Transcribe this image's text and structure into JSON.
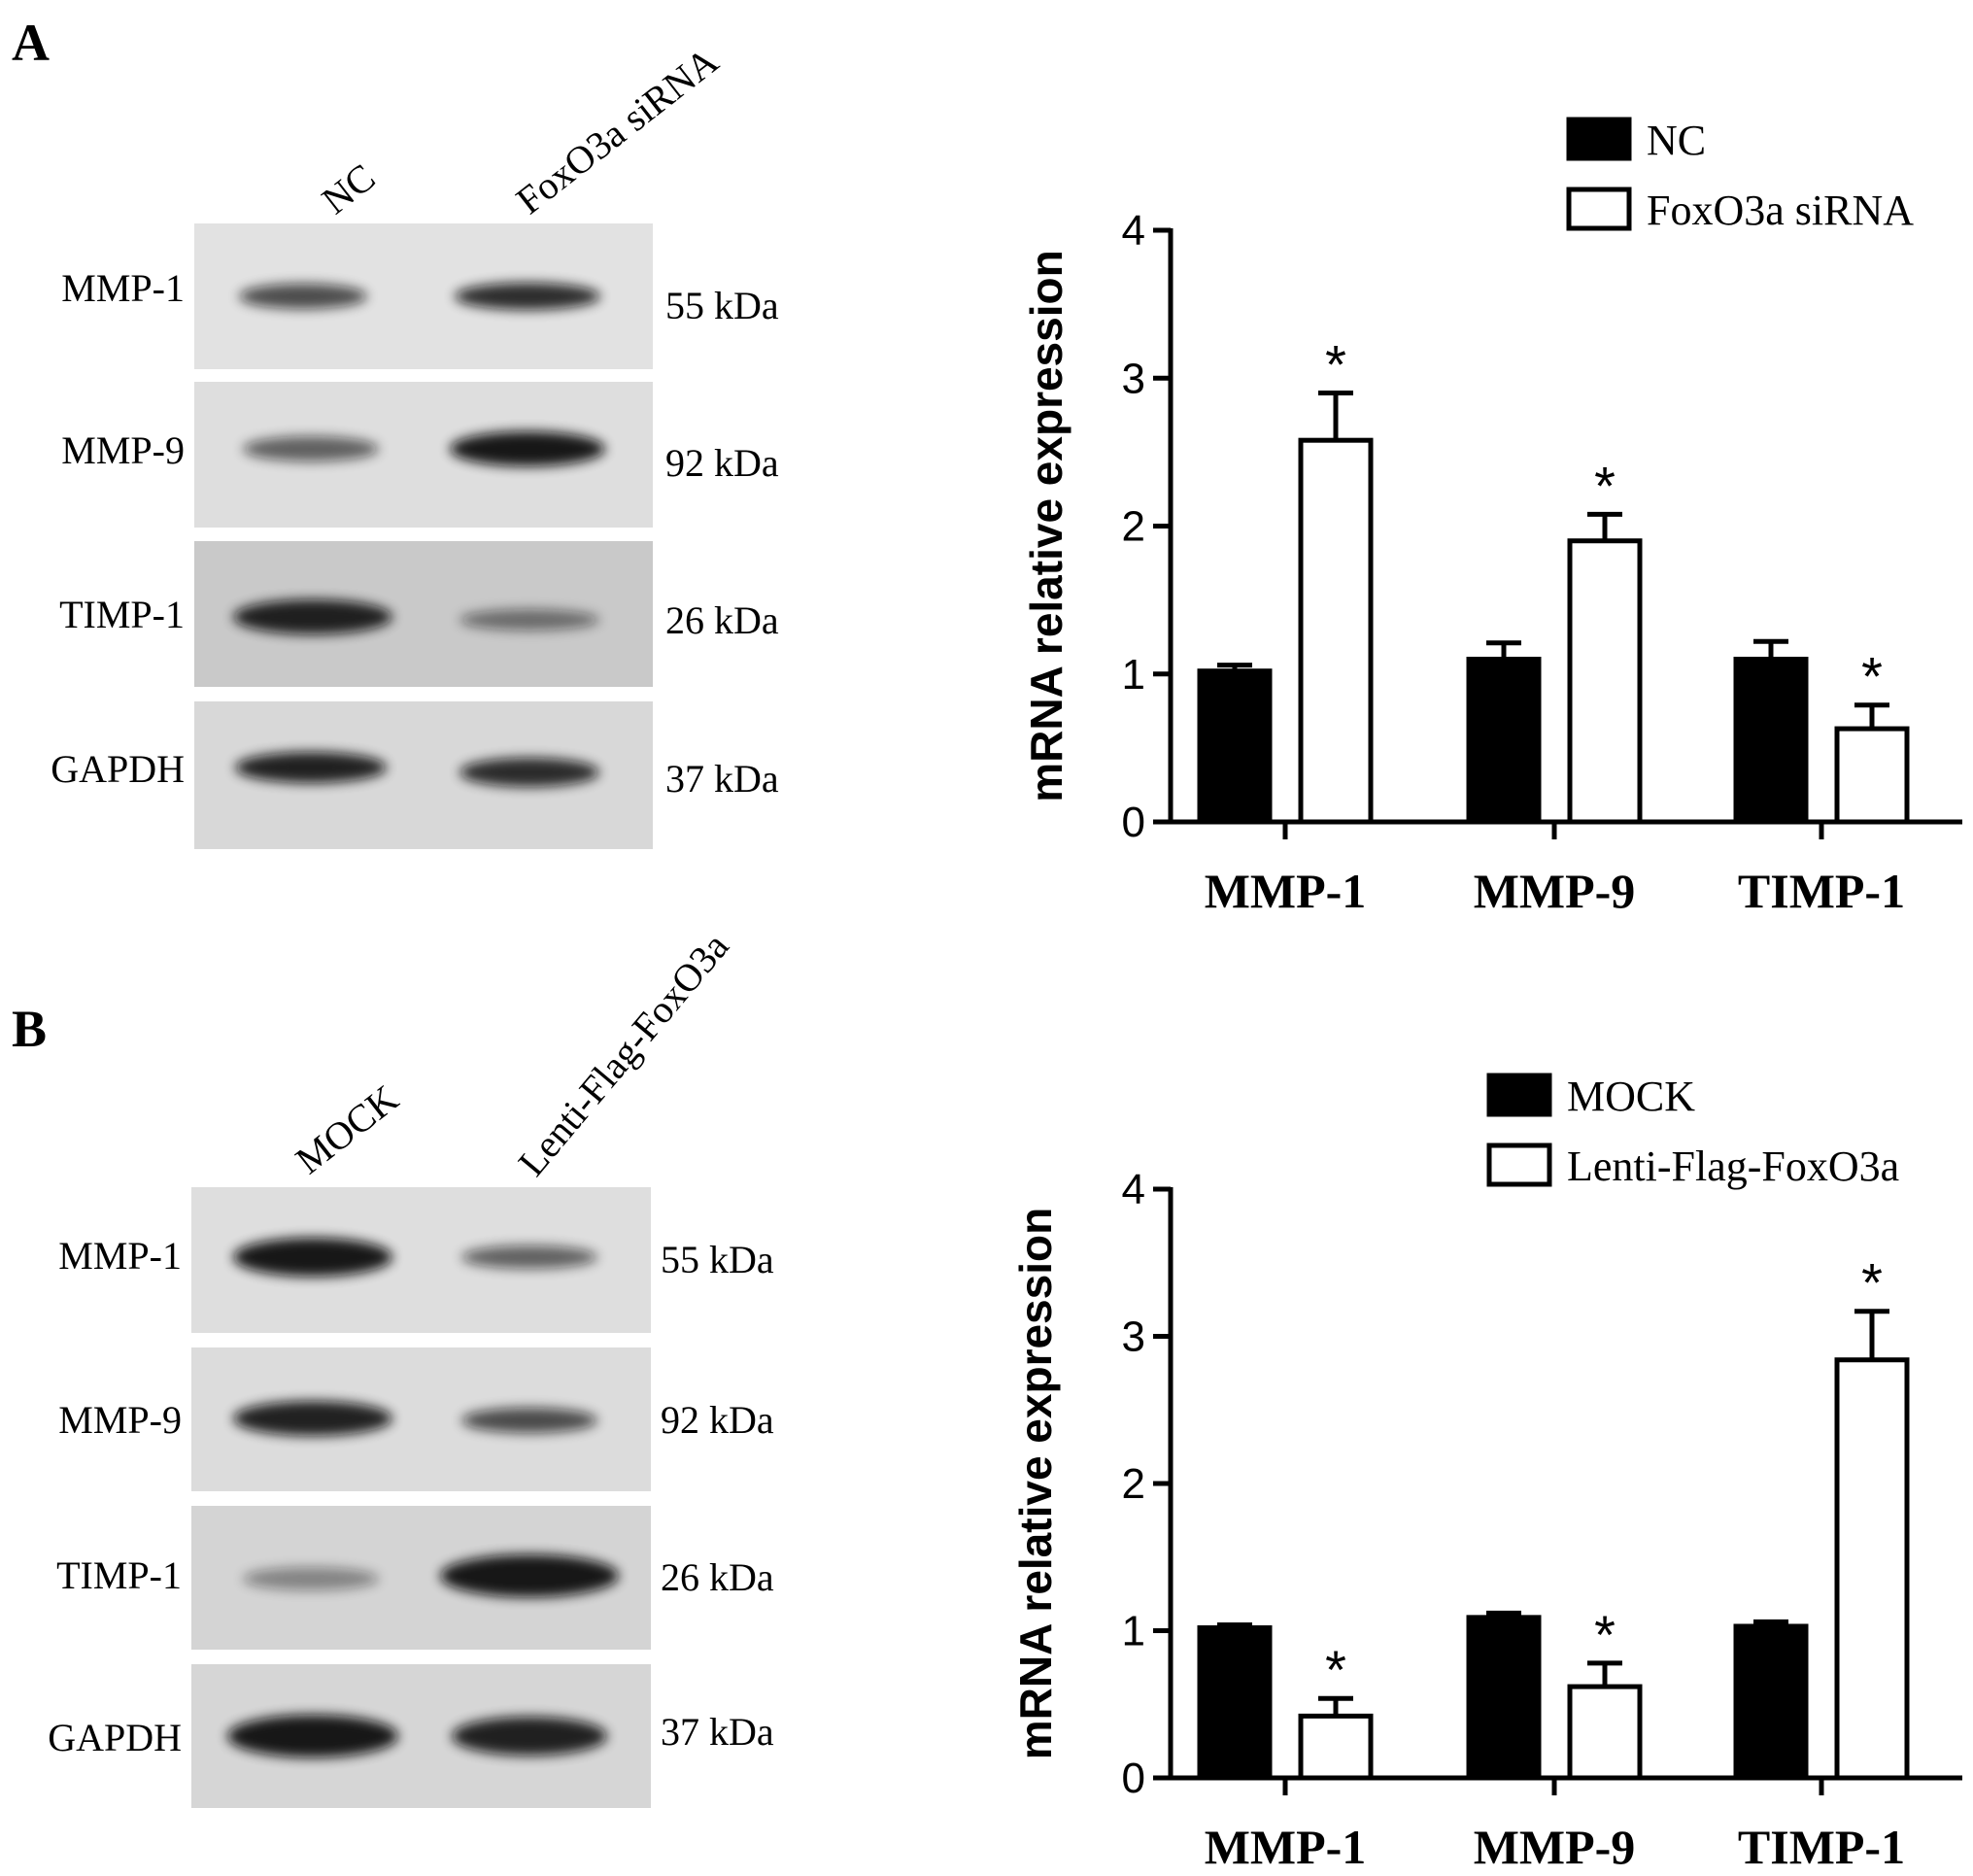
{
  "panels": [
    {
      "letter": "A",
      "lanes": [
        "NC",
        "FoxO3a siRNA"
      ],
      "blots": [
        {
          "protein": "MMP-1",
          "size": "55 kDa",
          "intensity": [
            0.7,
            0.85
          ]
        },
        {
          "protein": "MMP-9",
          "size": "92 kDa",
          "intensity": [
            0.6,
            0.95
          ]
        },
        {
          "protein": "TIMP-1",
          "size": "26 kDa",
          "intensity": [
            0.9,
            0.5
          ]
        },
        {
          "protein": "GAPDH",
          "size": "37 kDa",
          "intensity": [
            0.9,
            0.85
          ]
        }
      ]
    },
    {
      "letter": "B",
      "lanes": [
        "MOCK",
        "Lenti-Flag-FoxO3a"
      ],
      "blots": [
        {
          "protein": "MMP-1",
          "size": "55 kDa",
          "intensity": [
            0.95,
            0.6
          ]
        },
        {
          "protein": "MMP-9",
          "size": "92 kDa",
          "intensity": [
            0.9,
            0.7
          ]
        },
        {
          "protein": "TIMP-1",
          "size": "26 kDa",
          "intensity": [
            0.4,
            0.95
          ]
        },
        {
          "protein": "GAPDH",
          "size": "37 kDa",
          "intensity": [
            0.95,
            0.9
          ]
        }
      ]
    }
  ],
  "chart_data": [
    {
      "type": "bar",
      "ylabel": "mRNA relative expression",
      "xlabel": "",
      "ylim": [
        0,
        4
      ],
      "yticks": [
        0,
        1,
        2,
        3,
        4
      ],
      "categories": [
        "MMP-1",
        "MMP-9",
        "TIMP-1"
      ],
      "series": [
        {
          "name": "NC",
          "fill": "#000000",
          "values": [
            1.02,
            1.1,
            1.1
          ],
          "errors": [
            0.04,
            0.11,
            0.12
          ],
          "significant": [
            false,
            false,
            false
          ]
        },
        {
          "name": "FoxO3a siRNA",
          "fill": "#ffffff",
          "values": [
            2.58,
            1.9,
            0.63
          ],
          "errors": [
            0.32,
            0.18,
            0.16
          ],
          "significant": [
            true,
            true,
            true
          ]
        }
      ],
      "legend_position": "top-right",
      "significance_marker": "*"
    },
    {
      "type": "bar",
      "ylabel": "mRNA relative expression",
      "xlabel": "",
      "ylim": [
        0,
        4
      ],
      "yticks": [
        0,
        1,
        2,
        3,
        4
      ],
      "categories": [
        "MMP-1",
        "MMP-9",
        "TIMP-1"
      ],
      "series": [
        {
          "name": "MOCK",
          "fill": "#000000",
          "values": [
            1.02,
            1.09,
            1.03
          ],
          "errors": [
            0.02,
            0.03,
            0.03
          ],
          "significant": [
            false,
            false,
            false
          ]
        },
        {
          "name": "Lenti-Flag-FoxO3a",
          "fill": "#ffffff",
          "values": [
            0.42,
            0.62,
            2.84
          ],
          "errors": [
            0.12,
            0.16,
            0.33
          ],
          "significant": [
            true,
            true,
            true
          ]
        }
      ],
      "legend_position": "top-right",
      "significance_marker": "*"
    }
  ]
}
